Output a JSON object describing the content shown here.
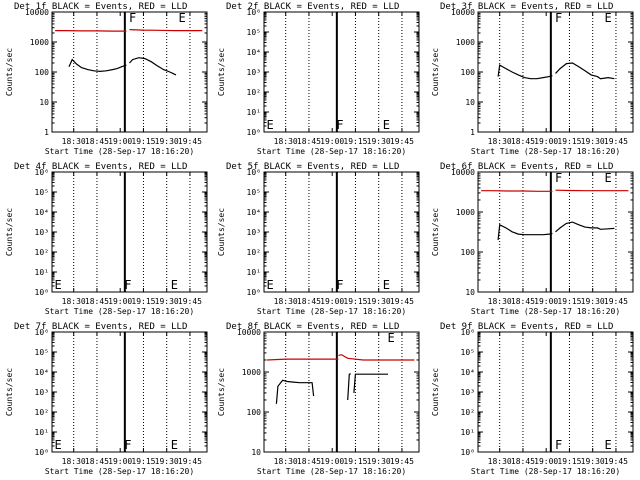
{
  "figure": {
    "start_time_label": "Start Time (28-Sep-17 18:16:20)",
    "ylabel": "Counts/sec",
    "xtick_labels": [
      "18:30",
      "18:45",
      "19:00",
      "19:15",
      "19:30",
      "19:45"
    ],
    "colors": {
      "events": "#000000",
      "lld": "#cc0000",
      "axes": "#000000",
      "background": "#ffffff"
    }
  },
  "chart_data": [
    {
      "type": "line",
      "title": "Det 1f BLACK = Events, RED = LLD",
      "ylabel": "Counts/sec",
      "xlabel": "Start Time (28-Sep-17 18:16:20)",
      "xlim": [
        "18:16",
        "19:56"
      ],
      "yscale": "log",
      "ylim": [
        1,
        10000
      ],
      "yticklabels": [
        "1",
        "10",
        "100",
        "1000",
        "10000"
      ],
      "flags": [
        {
          "label": "F",
          "time": "19:05"
        },
        {
          "label": "E",
          "time": "19:37"
        }
      ],
      "series": [
        {
          "color": "#000000",
          "x": [
            "18:27",
            "18:29",
            "18:32",
            "18:35",
            "18:39",
            "18:43",
            "18:47",
            "18:51",
            "18:55",
            "18:58",
            "19:01",
            "19:04"
          ],
          "y": [
            150,
            260,
            180,
            140,
            120,
            110,
            105,
            110,
            120,
            130,
            150,
            170
          ]
        },
        {
          "color": "#000000",
          "x": [
            "19:06",
            "19:08",
            "19:12",
            "19:16",
            "19:20",
            "19:24",
            "19:28",
            "19:32",
            "19:34",
            "19:36"
          ],
          "y": [
            200,
            260,
            300,
            280,
            220,
            160,
            120,
            100,
            90,
            80
          ]
        },
        {
          "color": "#cc0000",
          "x": [
            "18:18",
            "18:25",
            "18:35",
            "18:45",
            "18:55",
            "19:04"
          ],
          "y": [
            2400,
            2400,
            2350,
            2350,
            2300,
            2300
          ]
        },
        {
          "color": "#cc0000",
          "x": [
            "19:06",
            "19:15",
            "19:25",
            "19:35",
            "19:45",
            "19:53"
          ],
          "y": [
            2600,
            2500,
            2450,
            2400,
            2400,
            2400
          ]
        }
      ]
    },
    {
      "type": "line",
      "title": "Det 2f BLACK = Events, RED = LLD",
      "ylabel": "Counts/sec",
      "xlabel": "Start Time (28-Sep-17 18:16:20)",
      "xlim": [
        "18:16",
        "19:56"
      ],
      "yscale": "log",
      "ylim": [
        1,
        1000000
      ],
      "yticklabels": [
        "10⁰",
        "10¹",
        "10²",
        "10³",
        "10⁴",
        "10⁵",
        "10⁶"
      ],
      "flags": [
        {
          "label": "E",
          "time": "18:17"
        },
        {
          "label": "F",
          "time": "19:02"
        },
        {
          "label": "E",
          "time": "19:32"
        }
      ],
      "series": []
    },
    {
      "type": "line",
      "title": "Det 3f BLACK = Events, RED = LLD",
      "ylabel": "Counts/sec",
      "xlabel": "Start Time (28-Sep-17 18:16:20)",
      "xlim": [
        "18:16",
        "19:56"
      ],
      "yscale": "log",
      "ylim": [
        1,
        10000
      ],
      "yticklabels": [
        "1",
        "10",
        "100",
        "1000",
        "10000"
      ],
      "flags": [
        {
          "label": "F",
          "time": "19:05"
        },
        {
          "label": "E",
          "time": "19:37"
        }
      ],
      "series": [
        {
          "color": "#000000",
          "x": [
            "18:29",
            "18:30",
            "18:34",
            "18:38",
            "18:42",
            "18:46",
            "18:50",
            "18:54",
            "18:58",
            "19:02",
            "19:04"
          ],
          "y": [
            70,
            170,
            130,
            100,
            80,
            65,
            60,
            60,
            65,
            70,
            75
          ]
        },
        {
          "color": "#000000",
          "x": [
            "19:06",
            "19:09",
            "19:13",
            "19:17",
            "19:21",
            "19:25",
            "19:29",
            "19:33",
            "19:35",
            "19:40",
            "19:44"
          ],
          "y": [
            90,
            130,
            190,
            200,
            150,
            110,
            80,
            70,
            60,
            65,
            60
          ]
        }
      ]
    },
    {
      "type": "line",
      "title": "Det 4f BLACK = Events, RED = LLD",
      "ylabel": "Counts/sec",
      "xlabel": "Start Time (28-Sep-17 18:16:20)",
      "xlim": [
        "18:16",
        "19:56"
      ],
      "yscale": "log",
      "ylim": [
        1,
        1000000
      ],
      "yticklabels": [
        "10⁰",
        "10¹",
        "10²",
        "10³",
        "10⁴",
        "10⁵",
        "10⁶"
      ],
      "flags": [
        {
          "label": "E",
          "time": "18:17"
        },
        {
          "label": "F",
          "time": "19:02"
        },
        {
          "label": "E",
          "time": "19:32"
        }
      ],
      "series": []
    },
    {
      "type": "line",
      "title": "Det 5f BLACK = Events, RED = LLD",
      "ylabel": "Counts/sec",
      "xlabel": "Start Time (28-Sep-17 18:16:20)",
      "xlim": [
        "18:16",
        "19:56"
      ],
      "yscale": "log",
      "ylim": [
        1,
        1000000
      ],
      "yticklabels": [
        "10⁰",
        "10¹",
        "10²",
        "10³",
        "10⁴",
        "10⁵",
        "10⁶"
      ],
      "flags": [
        {
          "label": "E",
          "time": "18:17"
        },
        {
          "label": "F",
          "time": "19:02"
        },
        {
          "label": "E",
          "time": "19:32"
        }
      ],
      "series": []
    },
    {
      "type": "line",
      "title": "Det 6f BLACK = Events, RED = LLD",
      "ylabel": "Counts/sec",
      "xlabel": "Start Time (28-Sep-17 18:16:20)",
      "xlim": [
        "18:16",
        "19:56"
      ],
      "yscale": "log",
      "ylim": [
        10,
        10000
      ],
      "yticklabels": [
        "10",
        "100",
        "1000",
        "10000"
      ],
      "flags": [
        {
          "label": "F",
          "time": "19:05"
        },
        {
          "label": "E",
          "time": "19:37"
        }
      ],
      "series": [
        {
          "color": "#000000",
          "x": [
            "18:29",
            "18:30",
            "18:34",
            "18:38",
            "18:42",
            "18:46",
            "18:50",
            "18:54",
            "18:58",
            "19:02",
            "19:04"
          ],
          "y": [
            200,
            480,
            400,
            320,
            280,
            270,
            270,
            270,
            270,
            280,
            290
          ]
        },
        {
          "color": "#000000",
          "x": [
            "19:06",
            "19:09",
            "19:13",
            "19:17",
            "19:21",
            "19:25",
            "19:29",
            "19:33",
            "19:35",
            "19:40",
            "19:44"
          ],
          "y": [
            320,
            400,
            520,
            560,
            480,
            420,
            400,
            400,
            370,
            380,
            390
          ]
        },
        {
          "color": "#cc0000",
          "x": [
            "18:18",
            "18:25",
            "18:35",
            "18:45",
            "18:55",
            "19:04"
          ],
          "y": [
            3400,
            3400,
            3350,
            3350,
            3300,
            3300
          ]
        },
        {
          "color": "#cc0000",
          "x": [
            "19:06",
            "19:15",
            "19:25",
            "19:35",
            "19:45",
            "19:53"
          ],
          "y": [
            3500,
            3450,
            3400,
            3400,
            3400,
            3400
          ]
        }
      ]
    },
    {
      "type": "line",
      "title": "Det 7f BLACK = Events, RED = LLD",
      "ylabel": "Counts/sec",
      "xlabel": "Start Time (28-Sep-17 18:16:20)",
      "xlim": [
        "18:16",
        "19:56"
      ],
      "yscale": "log",
      "ylim": [
        1,
        1000000
      ],
      "yticklabels": [
        "10⁰",
        "10¹",
        "10²",
        "10³",
        "10⁴",
        "10⁵",
        "10⁶"
      ],
      "flags": [
        {
          "label": "E",
          "time": "18:17"
        },
        {
          "label": "F",
          "time": "19:02"
        },
        {
          "label": "E",
          "time": "19:32"
        }
      ],
      "series": []
    },
    {
      "type": "line",
      "title": "Det 8f BLACK = Events, RED = LLD",
      "ylabel": "Counts/sec",
      "xlabel": "Start Time (28-Sep-17 18:16:20)",
      "xlim": [
        "18:16",
        "19:56"
      ],
      "yscale": "log",
      "ylim": [
        10,
        10000
      ],
      "yticklabels": [
        "10",
        "100",
        "1000",
        "10000"
      ],
      "flags": [
        {
          "label": "E",
          "time": "19:35"
        }
      ],
      "series": [
        {
          "color": "#000000",
          "x": [
            "18:24",
            "18:25",
            "18:28",
            "18:31",
            "18:35",
            "18:39",
            "18:43",
            "18:47",
            "18:48"
          ],
          "y": [
            160,
            440,
            620,
            580,
            560,
            540,
            540,
            540,
            250
          ]
        },
        {
          "color": "#000000",
          "x": [
            "19:10",
            "19:11",
            "19:12"
          ],
          "y": [
            200,
            880,
            900
          ]
        },
        {
          "color": "#000000",
          "x": [
            "19:14",
            "19:15",
            "19:20",
            "19:25",
            "19:30",
            "19:36"
          ],
          "y": [
            300,
            880,
            880,
            880,
            880,
            880
          ]
        },
        {
          "color": "#cc0000",
          "x": [
            "18:18",
            "18:30",
            "18:40",
            "18:50",
            "19:00",
            "19:04"
          ],
          "y": [
            2000,
            2100,
            2100,
            2100,
            2100,
            2100
          ]
        },
        {
          "color": "#cc0000",
          "x": [
            "19:04",
            "19:06",
            "19:10",
            "19:20",
            "19:30",
            "19:40",
            "19:53"
          ],
          "y": [
            2600,
            2700,
            2200,
            2000,
            2000,
            2000,
            2000
          ]
        }
      ]
    },
    {
      "type": "line",
      "title": "Det 9f BLACK = Events, RED = LLD",
      "ylabel": "Counts/sec",
      "xlabel": "Start Time (28-Sep-17 18:16:20)",
      "xlim": [
        "18:16",
        "19:56"
      ],
      "yscale": "log",
      "ylim": [
        1,
        1000000
      ],
      "yticklabels": [
        "10⁰",
        "10¹",
        "10²",
        "10³",
        "10⁴",
        "10⁵",
        "10⁶"
      ],
      "flags": [
        {
          "label": "F",
          "time": "19:05"
        },
        {
          "label": "E",
          "time": "19:37"
        }
      ],
      "series": []
    }
  ]
}
